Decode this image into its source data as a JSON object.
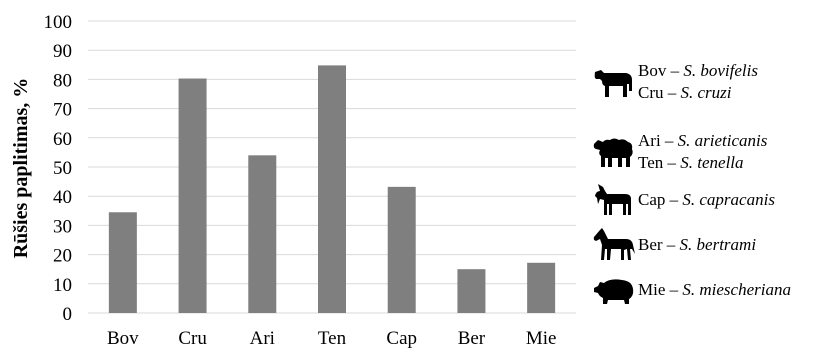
{
  "chart_data": {
    "type": "bar",
    "categories": [
      "Bov",
      "Cru",
      "Ari",
      "Ten",
      "Cap",
      "Ber",
      "Mie"
    ],
    "values": [
      34.5,
      80.3,
      54,
      84.8,
      43.2,
      15,
      17.2
    ],
    "title": "",
    "xlabel": "",
    "ylabel": "Rūšies paplitimas, %",
    "ylim": [
      0,
      100
    ],
    "yticks": [
      0,
      10,
      20,
      30,
      40,
      50,
      60,
      70,
      80,
      90,
      100
    ],
    "grid": true,
    "bar_color": "#7f7f7f",
    "grid_color": "#d9d9d9",
    "legend_placement": "right"
  },
  "legend": [
    {
      "icon": "cow-icon",
      "entries": [
        {
          "code": "Bov",
          "sep": " – ",
          "species": "S. bovifelis"
        },
        {
          "code": "Cru",
          "sep": " – ",
          "species": "S. cruzi"
        }
      ]
    },
    {
      "icon": "sheep-icon",
      "entries": [
        {
          "code": "Ari",
          "sep": " – ",
          "species": "S. arieticanis"
        },
        {
          "code": "Ten",
          "sep": " – ",
          "species": "S. tenella"
        }
      ]
    },
    {
      "icon": "goat-icon",
      "entries": [
        {
          "code": "Cap",
          "sep": " – ",
          "species": "S. capracanis"
        }
      ]
    },
    {
      "icon": "horse-icon",
      "entries": [
        {
          "code": "Ber",
          "sep": " – ",
          "species": "S. bertrami"
        }
      ]
    },
    {
      "icon": "pig-icon",
      "entries": [
        {
          "code": "Mie",
          "sep": " – ",
          "species": "S. miescheriana"
        }
      ]
    }
  ]
}
